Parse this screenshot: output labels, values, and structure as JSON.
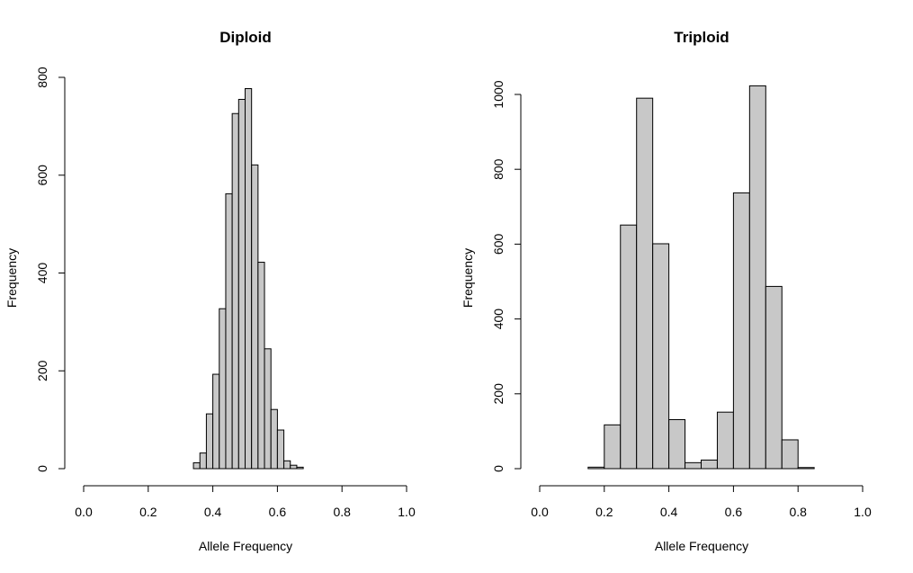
{
  "chart_data": [
    {
      "type": "bar",
      "title": "Diploid",
      "xlabel": "Allele Frequency",
      "ylabel": "Frequency",
      "xlim": [
        0,
        1
      ],
      "ylim": [
        0,
        800
      ],
      "xticks": [
        "0.0",
        "0.2",
        "0.4",
        "0.6",
        "0.8",
        "1.0"
      ],
      "yticks": [
        "0",
        "200",
        "400",
        "600",
        "800"
      ],
      "bar_color": "#c8c8c8",
      "bins": [
        {
          "x0": 0.34,
          "x1": 0.36,
          "value": 12
        },
        {
          "x0": 0.36,
          "x1": 0.38,
          "value": 32
        },
        {
          "x0": 0.38,
          "x1": 0.4,
          "value": 112
        },
        {
          "x0": 0.4,
          "x1": 0.42,
          "value": 193
        },
        {
          "x0": 0.42,
          "x1": 0.44,
          "value": 327
        },
        {
          "x0": 0.44,
          "x1": 0.46,
          "value": 562
        },
        {
          "x0": 0.46,
          "x1": 0.48,
          "value": 726
        },
        {
          "x0": 0.48,
          "x1": 0.5,
          "value": 755
        },
        {
          "x0": 0.5,
          "x1": 0.52,
          "value": 777
        },
        {
          "x0": 0.52,
          "x1": 0.54,
          "value": 621
        },
        {
          "x0": 0.54,
          "x1": 0.56,
          "value": 422
        },
        {
          "x0": 0.56,
          "x1": 0.58,
          "value": 245
        },
        {
          "x0": 0.58,
          "x1": 0.6,
          "value": 121
        },
        {
          "x0": 0.6,
          "x1": 0.62,
          "value": 79
        },
        {
          "x0": 0.62,
          "x1": 0.64,
          "value": 16
        },
        {
          "x0": 0.64,
          "x1": 0.66,
          "value": 7
        },
        {
          "x0": 0.66,
          "x1": 0.68,
          "value": 3
        }
      ]
    },
    {
      "type": "bar",
      "title": "Triploid",
      "xlabel": "Allele Frequency",
      "ylabel": "Frequency",
      "xlim": [
        0,
        1
      ],
      "ylim": [
        0,
        1000
      ],
      "xticks": [
        "0.0",
        "0.2",
        "0.4",
        "0.6",
        "0.8",
        "1.0"
      ],
      "yticks": [
        "0",
        "200",
        "400",
        "600",
        "800",
        "1000"
      ],
      "bar_color": "#c8c8c8",
      "bins": [
        {
          "x0": 0.15,
          "x1": 0.2,
          "value": 4
        },
        {
          "x0": 0.2,
          "x1": 0.25,
          "value": 117
        },
        {
          "x0": 0.25,
          "x1": 0.3,
          "value": 651
        },
        {
          "x0": 0.3,
          "x1": 0.35,
          "value": 990
        },
        {
          "x0": 0.35,
          "x1": 0.4,
          "value": 601
        },
        {
          "x0": 0.4,
          "x1": 0.45,
          "value": 131
        },
        {
          "x0": 0.45,
          "x1": 0.5,
          "value": 16
        },
        {
          "x0": 0.5,
          "x1": 0.55,
          "value": 23
        },
        {
          "x0": 0.55,
          "x1": 0.6,
          "value": 151
        },
        {
          "x0": 0.6,
          "x1": 0.65,
          "value": 737
        },
        {
          "x0": 0.65,
          "x1": 0.7,
          "value": 1023
        },
        {
          "x0": 0.7,
          "x1": 0.75,
          "value": 487
        },
        {
          "x0": 0.75,
          "x1": 0.8,
          "value": 77
        },
        {
          "x0": 0.8,
          "x1": 0.85,
          "value": 3
        }
      ]
    }
  ]
}
